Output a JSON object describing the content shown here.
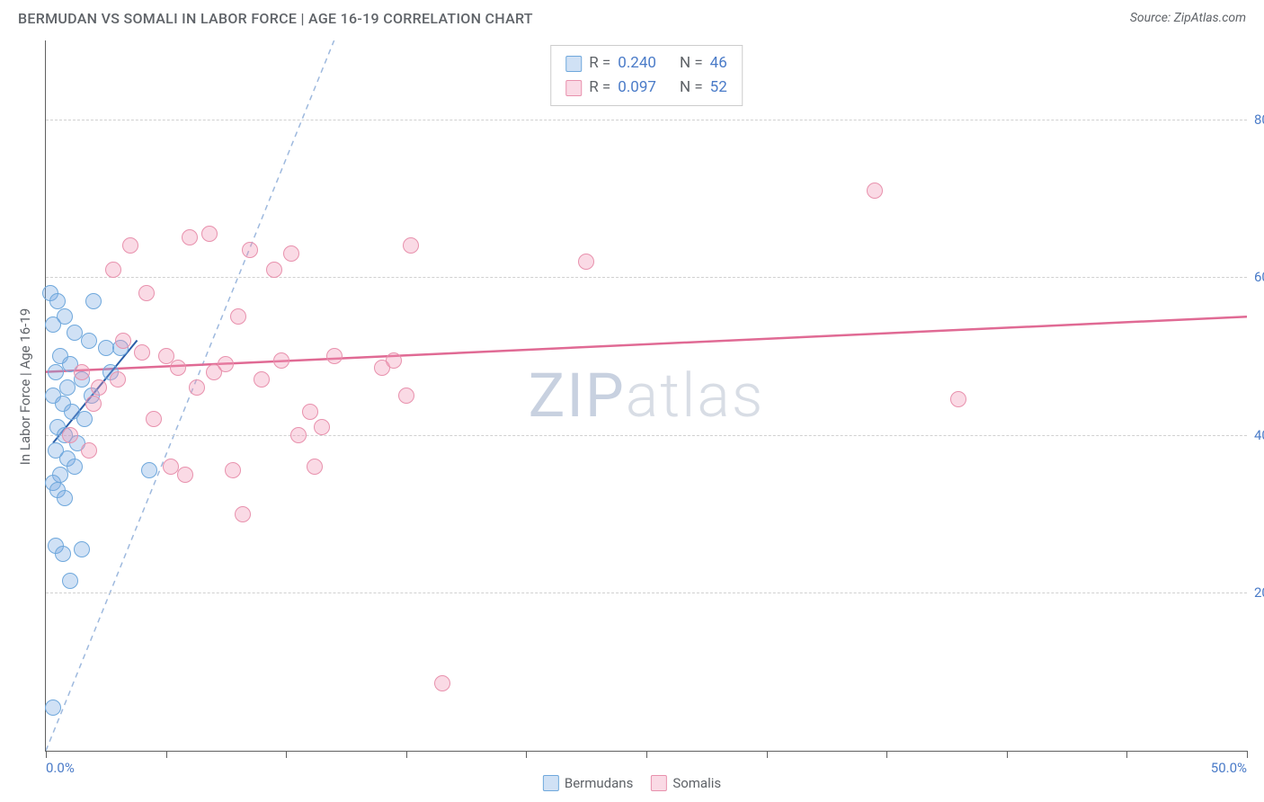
{
  "title": "BERMUDAN VS SOMALI IN LABOR FORCE | AGE 16-19 CORRELATION CHART",
  "source_label": "Source: ZipAtlas.com",
  "y_axis_title": "In Labor Force | Age 16-19",
  "chart": {
    "type": "scatter",
    "xlim": [
      0,
      50
    ],
    "ylim": [
      0,
      90
    ],
    "x_ticks": [
      0,
      5,
      10,
      15,
      20,
      25,
      30,
      35,
      40,
      45,
      50
    ],
    "x_tick_start_label": "0.0%",
    "x_tick_end_label": "50.0%",
    "y_gridlines": [
      20,
      40,
      60,
      80
    ],
    "y_tick_labels": [
      "20.0%",
      "40.0%",
      "60.0%",
      "80.0%"
    ],
    "background_color": "#ffffff",
    "grid_color": "#d0d0d0",
    "axis_color": "#606060",
    "marker_radius": 9,
    "series": [
      {
        "name": "Bermudans",
        "fill": "rgba(120,170,225,0.35)",
        "stroke": "#6fa8dc",
        "stroke_width": 1.5,
        "r_value": "0.240",
        "n_value": "46",
        "trend": {
          "x1": 0.3,
          "y1": 39,
          "x2": 3.8,
          "y2": 52,
          "color": "#2b5ea8",
          "width": 2,
          "dash": "none"
        },
        "ideal": {
          "x1": 0,
          "y1": 0,
          "x2": 12,
          "y2": 90,
          "color": "#9eb9de",
          "width": 1.5,
          "dash": "6,5"
        },
        "points": [
          [
            0.2,
            58
          ],
          [
            0.5,
            57
          ],
          [
            0.8,
            55
          ],
          [
            0.3,
            54
          ],
          [
            1.2,
            53
          ],
          [
            1.8,
            52
          ],
          [
            2.5,
            51
          ],
          [
            0.6,
            50
          ],
          [
            1.0,
            49
          ],
          [
            0.4,
            48
          ],
          [
            1.5,
            47
          ],
          [
            0.9,
            46
          ],
          [
            0.3,
            45
          ],
          [
            0.7,
            44
          ],
          [
            1.1,
            43
          ],
          [
            1.6,
            42
          ],
          [
            0.5,
            41
          ],
          [
            0.8,
            40
          ],
          [
            1.3,
            39
          ],
          [
            0.4,
            38
          ],
          [
            0.9,
            37
          ],
          [
            1.2,
            36
          ],
          [
            0.6,
            35
          ],
          [
            0.3,
            34
          ],
          [
            4.3,
            35.5
          ],
          [
            0.5,
            33
          ],
          [
            0.8,
            32
          ],
          [
            0.4,
            26
          ],
          [
            0.7,
            25
          ],
          [
            1.5,
            25.5
          ],
          [
            1.0,
            21.5
          ],
          [
            0.3,
            5.5
          ],
          [
            2.0,
            57
          ],
          [
            3.1,
            51
          ],
          [
            1.9,
            45
          ],
          [
            2.7,
            48
          ]
        ]
      },
      {
        "name": "Somalis",
        "fill": "rgba(240,150,180,0.35)",
        "stroke": "#e891ad",
        "stroke_width": 1.5,
        "r_value": "0.097",
        "n_value": "52",
        "trend": {
          "x1": 0,
          "y1": 48,
          "x2": 50,
          "y2": 55,
          "color": "#e06a94",
          "width": 2.5,
          "dash": "none"
        },
        "points": [
          [
            3.5,
            64
          ],
          [
            6.0,
            65
          ],
          [
            6.8,
            65.5
          ],
          [
            2.8,
            61
          ],
          [
            4.2,
            58
          ],
          [
            8.5,
            63.5
          ],
          [
            9.5,
            61
          ],
          [
            10.2,
            63
          ],
          [
            15.2,
            64
          ],
          [
            22.5,
            62
          ],
          [
            34.5,
            71
          ],
          [
            1.5,
            48
          ],
          [
            2.2,
            46
          ],
          [
            3.0,
            47
          ],
          [
            5.0,
            50
          ],
          [
            5.5,
            48.5
          ],
          [
            7.0,
            48
          ],
          [
            7.5,
            49
          ],
          [
            9.0,
            47
          ],
          [
            9.8,
            49.5
          ],
          [
            11.0,
            43
          ],
          [
            8.0,
            55
          ],
          [
            4.5,
            42
          ],
          [
            5.2,
            36
          ],
          [
            5.8,
            35
          ],
          [
            7.8,
            35.5
          ],
          [
            10.5,
            40
          ],
          [
            11.5,
            41
          ],
          [
            12.0,
            50
          ],
          [
            14.0,
            48.5
          ],
          [
            14.5,
            49.5
          ],
          [
            15.0,
            45
          ],
          [
            11.2,
            36
          ],
          [
            8.2,
            30
          ],
          [
            1.0,
            40
          ],
          [
            1.8,
            38
          ],
          [
            2.0,
            44
          ],
          [
            16.5,
            8.5
          ],
          [
            38.0,
            44.5
          ],
          [
            3.2,
            52
          ],
          [
            4.0,
            50.5
          ],
          [
            6.3,
            46
          ]
        ]
      }
    ]
  },
  "legend": {
    "r_label": "R =",
    "n_label": "N ="
  },
  "bottom_legend": {
    "items": [
      "Bermudans",
      "Somalis"
    ]
  },
  "watermark": {
    "part1": "ZIP",
    "part2": "atlas"
  },
  "colors": {
    "title_text": "#5f6368",
    "value_text": "#4a7bc8"
  }
}
